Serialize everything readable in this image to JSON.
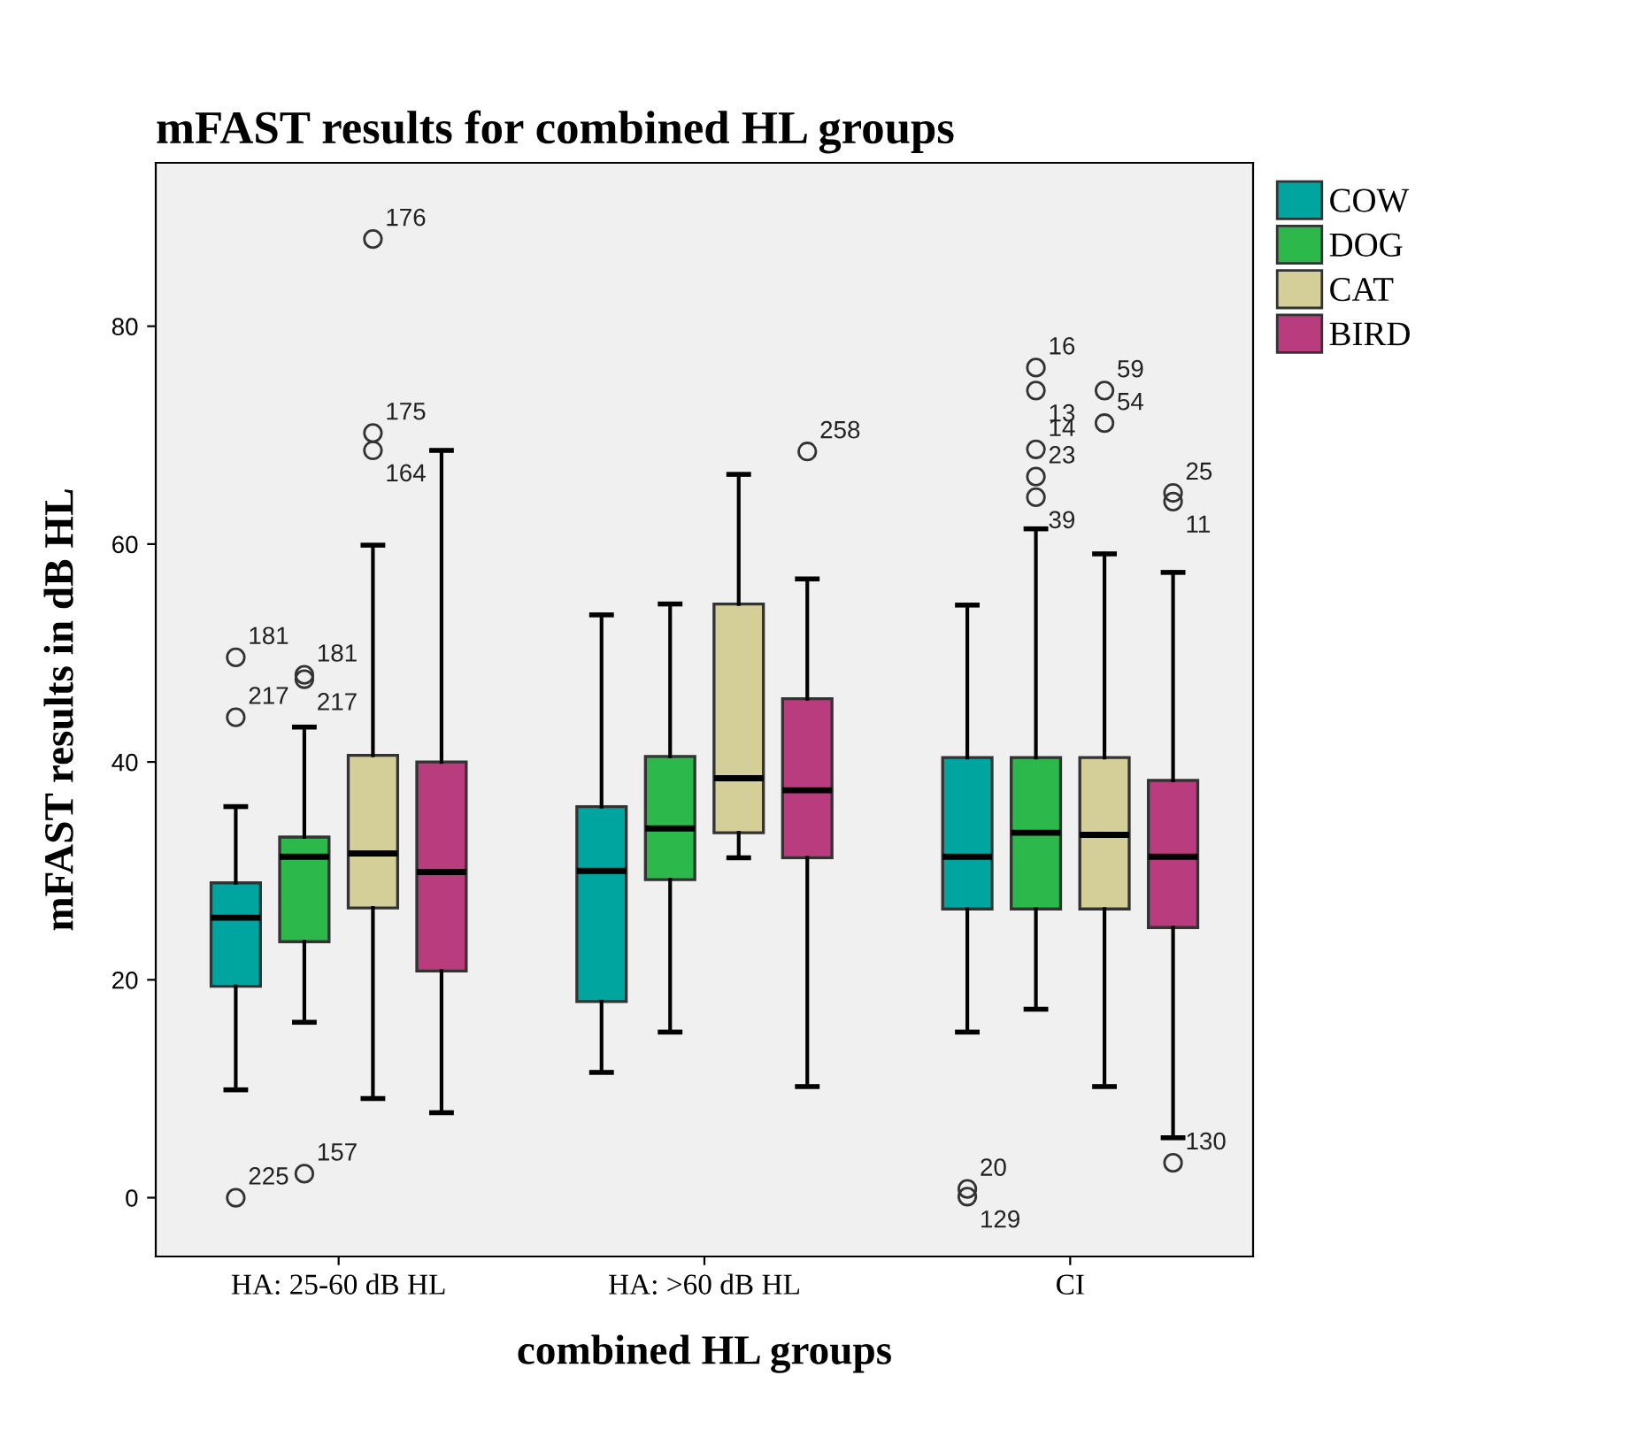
{
  "chart_data": {
    "type": "box",
    "title": "mFAST results for combined HL groups",
    "xlabel": "combined HL groups",
    "ylabel": "mFAST results in dB HL",
    "categories": [
      "HA: 25-60 dB HL",
      "HA: >60 dB HL",
      "CI"
    ],
    "series": [
      {
        "name": "COW",
        "color": "#00a5a0",
        "boxes": [
          {
            "low": 9.9,
            "q1": 19.4,
            "median": 25.7,
            "q3": 28.9,
            "high": 35.9,
            "outliers": [
              49.6,
              44.1,
              0
            ]
          },
          {
            "low": 11.5,
            "q1": 18.0,
            "median": 30.0,
            "q3": 35.9,
            "high": 53.5
          },
          {
            "low": 15.2,
            "q1": 26.5,
            "median": 31.3,
            "q3": 40.4,
            "high": 54.4,
            "outliers": [
              0.8,
              0.1
            ]
          }
        ]
      },
      {
        "name": "DOG",
        "color": "#2db84c",
        "boxes": [
          {
            "low": 16.1,
            "q1": 23.5,
            "median": 31.3,
            "q3": 33.1,
            "high": 43.2,
            "outliers": [
              48.0,
              47.6,
              2.2
            ]
          },
          {
            "low": 15.2,
            "q1": 29.2,
            "median": 33.9,
            "q3": 40.5,
            "high": 54.5
          },
          {
            "low": 17.3,
            "q1": 26.5,
            "median": 33.5,
            "q3": 40.4,
            "high": 61.4,
            "outliers": [
              76.2,
              74.1,
              68.7,
              66.2,
              64.3
            ]
          }
        ]
      },
      {
        "name": "CAT",
        "color": "#d4cf98",
        "boxes": [
          {
            "low": 9.1,
            "q1": 26.6,
            "median": 31.6,
            "q3": 40.6,
            "high": 59.9,
            "outliers": [
              88.0,
              70.2,
              68.6
            ]
          },
          {
            "low": 31.2,
            "q1": 33.5,
            "median": 38.5,
            "q3": 54.5,
            "high": 66.4
          },
          {
            "low": 10.2,
            "q1": 26.5,
            "median": 33.3,
            "q3": 40.4,
            "high": 59.1,
            "outliers": [
              74.1,
              71.1
            ]
          }
        ]
      },
      {
        "name": "BIRD",
        "color": "#b83c7e",
        "boxes": [
          {
            "low": 7.8,
            "q1": 20.8,
            "median": 29.9,
            "q3": 40.0,
            "high": 68.6
          },
          {
            "low": 10.2,
            "q1": 31.2,
            "median": 37.4,
            "q3": 45.8,
            "high": 56.8,
            "outliers": [
              68.5
            ]
          },
          {
            "low": 5.5,
            "q1": 24.8,
            "median": 31.3,
            "q3": 38.3,
            "high": 57.4,
            "outliers": [
              64.7,
              63.9,
              3.2
            ]
          }
        ]
      }
    ],
    "annotations": [
      "181",
      "217",
      "225",
      "181",
      "217",
      "157",
      "176",
      "175",
      "164",
      "258",
      "20",
      "129",
      "16",
      "13",
      "14",
      "23",
      "39",
      "59",
      "54",
      "25",
      "11",
      "130"
    ],
    "ylim": [
      -5.4,
      95
    ],
    "yticks": [
      0,
      20,
      40,
      60,
      80
    ],
    "grid": false,
    "legend": "right"
  }
}
